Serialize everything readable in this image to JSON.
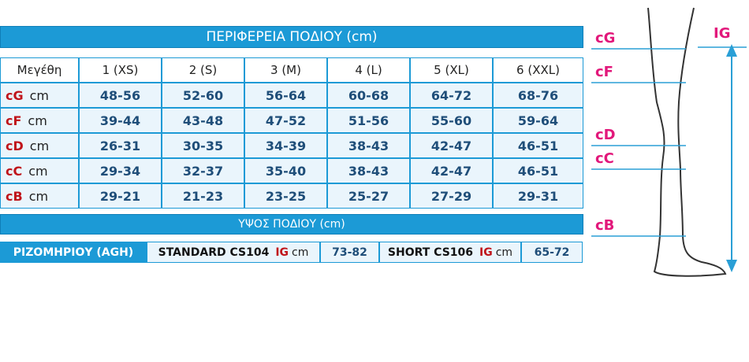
{
  "header": {
    "title": "ΠΕΡΙΦΕΡΕΙΑ ΠΟΔΙΟΥ (cm)"
  },
  "table": {
    "columns": [
      "Μεγέθη",
      "1 (XS)",
      "2 (S)",
      "3 (M)",
      "4 (L)",
      "5 (XL)",
      "6 (XXL)"
    ],
    "rows": [
      {
        "code": "cG",
        "unit": "cm",
        "values": [
          "48-56",
          "52-60",
          "56-64",
          "60-68",
          "64-72",
          "68-76"
        ]
      },
      {
        "code": "cF",
        "unit": "cm",
        "values": [
          "39-44",
          "43-48",
          "47-52",
          "51-56",
          "55-60",
          "59-64"
        ]
      },
      {
        "code": "cD",
        "unit": "cm",
        "values": [
          "26-31",
          "30-35",
          "34-39",
          "38-43",
          "42-47",
          "46-51"
        ]
      },
      {
        "code": "cC",
        "unit": "cm",
        "values": [
          "29-34",
          "32-37",
          "35-40",
          "38-43",
          "42-47",
          "46-51"
        ]
      },
      {
        "code": "cB",
        "unit": "cm",
        "values": [
          "29-21",
          "21-23",
          "23-25",
          "25-27",
          "27-29",
          "29-31"
        ]
      }
    ]
  },
  "height_section": {
    "title": "ΥΨΟΣ ΠΟΔΙΟΥ (cm)",
    "label": "ΡΙΖΟΜΗΡΙΟΥ (AGH)",
    "standard": {
      "name": "STANDARD CS104",
      "code": "IG",
      "unit": "cm",
      "value": "73-82"
    },
    "short": {
      "name": "SHORT CS106",
      "code": "IG",
      "unit": "cm",
      "value": "65-72"
    }
  },
  "diagram": {
    "labels": [
      "cG",
      "cF",
      "cD",
      "cC",
      "cB"
    ],
    "height_label": "IG"
  }
}
